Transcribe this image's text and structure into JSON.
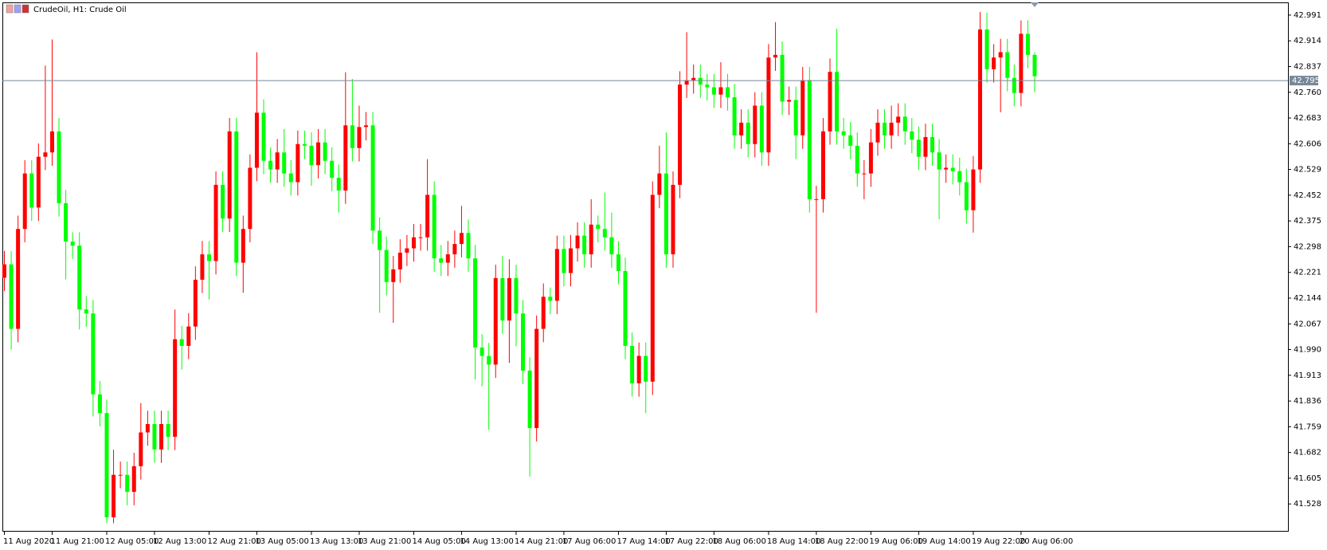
{
  "chart_data": {
    "type": "candlestick",
    "title": "CrudeOil, H1:  Crude Oil",
    "up_color": "#ff0000",
    "down_color": "#00ff00",
    "last_price": 42.795,
    "last_price_color": "#778899",
    "ylim": [
      41.445,
      43.029
    ],
    "yticks": [
      42.991,
      42.914,
      42.837,
      {
        "value": 42.76,
        "label": "42.760"
      },
      42.683,
      42.606,
      42.529,
      42.452,
      42.375,
      42.298,
      42.221,
      42.144,
      42.067,
      {
        "value": 41.99,
        "label": "41.990"
      },
      41.913,
      41.836,
      41.759,
      41.682,
      41.605,
      41.528
    ],
    "categories": [
      "11 Aug 2020",
      null,
      null,
      null,
      null,
      null,
      null,
      "11 Aug 21:00",
      null,
      null,
      null,
      null,
      null,
      null,
      null,
      "12 Aug 05:00",
      null,
      null,
      null,
      null,
      null,
      null,
      "12 Aug 13:00",
      null,
      null,
      null,
      null,
      null,
      null,
      null,
      "12 Aug 21:00",
      null,
      null,
      null,
      null,
      null,
      null,
      "13 Aug 05:00",
      null,
      null,
      null,
      null,
      null,
      null,
      null,
      "13 Aug 13:00",
      null,
      null,
      null,
      null,
      null,
      null,
      "13 Aug 21:00",
      null,
      null,
      null,
      null,
      null,
      null,
      null,
      "14 Aug 05:00",
      null,
      null,
      null,
      null,
      null,
      null,
      "14 Aug 13:00",
      null,
      null,
      null,
      null,
      null,
      null,
      null,
      "14 Aug 21:00",
      null,
      null,
      null,
      null,
      null,
      null,
      "17 Aug 06:00",
      null,
      null,
      null,
      null,
      null,
      null,
      null,
      "17 Aug 14:00",
      null,
      null,
      null,
      null,
      null,
      null,
      "17 Aug 22:00",
      null,
      null,
      null,
      null,
      null,
      null,
      "18 Aug 06:00",
      null,
      null,
      null,
      null,
      null,
      null,
      null,
      "18 Aug 14:00",
      null,
      null,
      null,
      null,
      null,
      null,
      "18 Aug 22:00",
      null,
      null,
      null,
      null,
      null,
      null,
      null,
      "19 Aug 06:00",
      null,
      null,
      null,
      null,
      null,
      null,
      "19 Aug 14:00",
      null,
      null,
      null,
      null,
      null,
      null,
      null,
      "19 Aug 22:00",
      null,
      null,
      null,
      null,
      null,
      null,
      "20 Aug 06:00",
      null,
      null
    ],
    "open": [
      42.205,
      42.245,
      42.052,
      42.351,
      42.517,
      42.415,
      42.567,
      42.58,
      42.643,
      42.428,
      42.313,
      42.301,
      42.11,
      42.098,
      41.856,
      41.8,
      41.488,
      41.615,
      41.615,
      41.564,
      41.641,
      41.742,
      41.767,
      41.691,
      41.767,
      41.729,
      42.021,
      42.001,
      42.059,
      42.199,
      42.275,
      42.255,
      42.483,
      42.382,
      42.643,
      42.25,
      42.351,
      42.534,
      42.699,
      42.555,
      42.529,
      42.58,
      42.517,
      42.491,
      42.605,
      42.6,
      42.542,
      42.61,
      42.555,
      42.504,
      42.466,
      42.661,
      42.593,
      42.656,
      42.661,
      42.346,
      42.288,
      42.192,
      42.23,
      42.28,
      42.293,
      42.326,
      42.326,
      42.453,
      42.263,
      42.25,
      42.275,
      42.306,
      42.339,
      42.263,
      41.996,
      41.971,
      41.945,
      42.204,
      42.077,
      42.204,
      42.098,
      41.927,
      41.755,
      42.052,
      42.148,
      42.136,
      42.291,
      42.219,
      42.293,
      42.331,
      42.275,
      42.364,
      42.351,
      42.326,
      42.275,
      42.225,
      42.001,
      41.889,
      41.971,
      41.894,
      42.453,
      42.517,
      42.275,
      42.483,
      42.783,
      42.796,
      42.803,
      42.783,
      42.775,
      42.753,
      42.775,
      42.745,
      42.631,
      42.669,
      42.605,
      42.72,
      42.58,
      42.864,
      42.872,
      42.732,
      42.737,
      42.631,
      42.796,
      42.44,
      42.44,
      42.643,
      42.821,
      42.643,
      42.631,
      42.6,
      42.517,
      42.517,
      42.61,
      42.669,
      42.631,
      42.669,
      42.687,
      42.643,
      42.618,
      42.567,
      42.626,
      42.58,
      42.529,
      42.534,
      42.524,
      42.491,
      42.407,
      42.529,
      42.948,
      42.829,
      42.864,
      42.88,
      42.803,
      42.758,
      42.935,
      42.872
    ],
    "high": [
      42.285,
      42.285,
      42.391,
      42.557,
      42.557,
      42.607,
      42.84,
      42.918,
      42.683,
      42.468,
      42.341,
      42.341,
      42.15,
      42.138,
      41.896,
      41.84,
      41.69,
      41.655,
      41.655,
      41.681,
      41.83,
      41.807,
      41.807,
      41.807,
      41.807,
      42.11,
      42.061,
      42.099,
      42.239,
      42.315,
      42.315,
      42.523,
      42.523,
      42.683,
      42.683,
      42.391,
      42.574,
      42.88,
      42.739,
      42.595,
      42.62,
      42.65,
      42.557,
      42.645,
      42.645,
      42.64,
      42.65,
      42.65,
      42.595,
      42.544,
      42.82,
      42.8,
      42.72,
      42.701,
      42.701,
      42.386,
      42.328,
      42.27,
      42.32,
      42.333,
      42.366,
      42.366,
      42.56,
      42.493,
      42.303,
      42.315,
      42.346,
      42.42,
      42.379,
      42.303,
      42.036,
      42.01,
      42.244,
      42.27,
      42.26,
      42.244,
      42.138,
      41.967,
      42.092,
      42.188,
      42.176,
      42.331,
      42.331,
      42.333,
      42.371,
      42.371,
      42.44,
      42.391,
      42.46,
      42.4,
      42.315,
      42.265,
      42.041,
      42.011,
      42.011,
      42.493,
      42.6,
      42.64,
      42.523,
      42.823,
      42.94,
      42.843,
      42.843,
      42.815,
      42.815,
      42.85,
      42.815,
      42.785,
      42.709,
      42.709,
      42.76,
      42.76,
      42.904,
      42.97,
      42.912,
      42.777,
      42.777,
      42.836,
      42.836,
      42.48,
      42.683,
      42.861,
      42.95,
      42.683,
      42.671,
      42.64,
      42.557,
      42.65,
      42.709,
      42.709,
      42.72,
      42.727,
      42.727,
      42.683,
      42.658,
      42.666,
      42.666,
      42.62,
      42.574,
      42.574,
      42.564,
      42.531,
      42.569,
      43.0,
      42.998,
      42.904,
      42.92,
      42.92,
      42.843,
      42.975,
      42.975,
      42.88
    ],
    "low": [
      42.165,
      41.99,
      42.012,
      42.311,
      42.375,
      42.375,
      42.527,
      42.54,
      42.388,
      42.2,
      42.261,
      42.05,
      42.058,
      41.79,
      41.76,
      41.47,
      41.47,
      41.575,
      41.524,
      41.524,
      41.601,
      41.702,
      41.651,
      41.651,
      41.689,
      41.689,
      41.93,
      41.961,
      42.019,
      42.159,
      42.14,
      42.215,
      42.342,
      42.342,
      42.21,
      42.16,
      42.311,
      42.494,
      42.515,
      42.489,
      42.489,
      42.477,
      42.451,
      42.451,
      42.56,
      42.48,
      42.502,
      42.515,
      42.464,
      42.4,
      42.426,
      42.553,
      42.553,
      42.616,
      42.306,
      42.1,
      42.152,
      42.07,
      42.19,
      42.24,
      42.253,
      42.286,
      42.286,
      42.223,
      42.21,
      42.21,
      42.235,
      42.266,
      42.223,
      41.9,
      41.88,
      41.75,
      41.905,
      42.037,
      41.95,
      42.0,
      41.887,
      41.61,
      41.715,
      42.012,
      42.096,
      42.096,
      42.179,
      42.179,
      42.253,
      42.235,
      42.235,
      42.311,
      42.286,
      42.235,
      42.185,
      41.961,
      41.849,
      41.849,
      41.8,
      41.854,
      42.413,
      42.235,
      42.235,
      42.443,
      42.743,
      42.756,
      42.743,
      42.735,
      42.713,
      42.713,
      42.705,
      42.591,
      42.591,
      42.565,
      42.565,
      42.54,
      42.54,
      42.824,
      42.692,
      42.692,
      42.56,
      42.591,
      42.4,
      42.1,
      42.4,
      42.603,
      42.603,
      42.591,
      42.56,
      42.477,
      42.44,
      42.477,
      42.57,
      42.591,
      42.591,
      42.629,
      42.603,
      42.578,
      42.527,
      42.527,
      42.54,
      42.38,
      42.489,
      42.484,
      42.451,
      42.367,
      42.34,
      42.489,
      42.789,
      42.789,
      42.7,
      42.763,
      42.718,
      42.718,
      42.832,
      42.76
    ],
    "close": [
      42.245,
      42.052,
      42.351,
      42.517,
      42.415,
      42.567,
      42.58,
      42.643,
      42.428,
      42.313,
      42.301,
      42.11,
      42.098,
      41.856,
      41.8,
      41.488,
      41.615,
      41.615,
      41.564,
      41.641,
      41.742,
      41.767,
      41.691,
      41.767,
      41.729,
      42.021,
      42.001,
      42.059,
      42.199,
      42.275,
      42.255,
      42.483,
      42.382,
      42.643,
      42.25,
      42.351,
      42.534,
      42.699,
      42.555,
      42.529,
      42.58,
      42.517,
      42.491,
      42.605,
      42.6,
      42.542,
      42.61,
      42.555,
      42.504,
      42.466,
      42.661,
      42.593,
      42.656,
      42.661,
      42.346,
      42.288,
      42.192,
      42.23,
      42.28,
      42.293,
      42.326,
      42.326,
      42.453,
      42.263,
      42.25,
      42.275,
      42.306,
      42.339,
      42.263,
      41.996,
      41.971,
      41.945,
      42.204,
      42.077,
      42.204,
      42.098,
      41.927,
      41.755,
      42.052,
      42.148,
      42.136,
      42.291,
      42.219,
      42.293,
      42.331,
      42.275,
      42.364,
      42.351,
      42.326,
      42.275,
      42.225,
      42.001,
      41.889,
      41.971,
      41.894,
      42.453,
      42.517,
      42.275,
      42.483,
      42.783,
      42.796,
      42.803,
      42.783,
      42.775,
      42.753,
      42.775,
      42.745,
      42.631,
      42.669,
      42.605,
      42.72,
      42.58,
      42.864,
      42.872,
      42.732,
      42.737,
      42.631,
      42.796,
      42.44,
      42.44,
      42.643,
      42.821,
      42.643,
      42.631,
      42.6,
      42.517,
      42.517,
      42.61,
      42.669,
      42.631,
      42.669,
      42.687,
      42.643,
      42.618,
      42.567,
      42.626,
      42.58,
      42.529,
      42.534,
      42.524,
      42.491,
      42.407,
      42.529,
      42.948,
      42.829,
      42.864,
      42.88,
      42.803,
      42.758,
      42.935,
      42.872,
      42.808
    ]
  }
}
